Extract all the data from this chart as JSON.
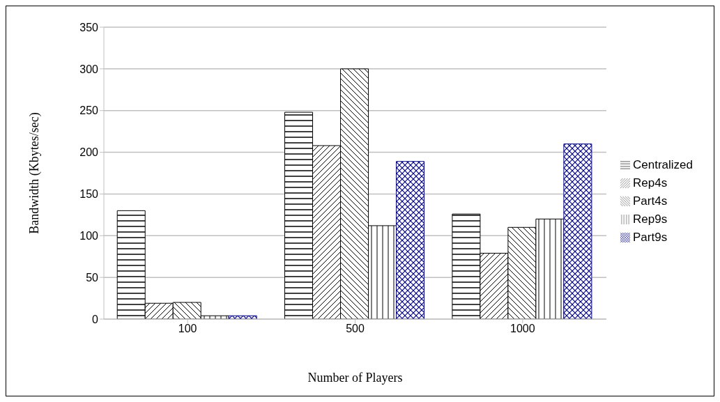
{
  "chart_data": {
    "type": "bar",
    "xlabel": "Number of Players",
    "ylabel": "Bandwidth (Kbytes/sec)",
    "categories": [
      "100",
      "500",
      "1000"
    ],
    "series": [
      {
        "name": "Centralized",
        "color": "#000000",
        "values": [
          130,
          248,
          126
        ]
      },
      {
        "name": "Rep4s",
        "color": "#000000",
        "values": [
          19,
          208,
          79
        ]
      },
      {
        "name": "Part4s",
        "color": "#000000",
        "values": [
          20,
          300,
          110
        ]
      },
      {
        "name": "Rep9s",
        "color": "#000000",
        "values": [
          4,
          112,
          120
        ]
      },
      {
        "name": "Part9s",
        "color": "#000080",
        "values": [
          4,
          189,
          210
        ]
      }
    ],
    "ylim": [
      0,
      350
    ],
    "yticks": [
      0,
      50,
      100,
      150,
      200,
      250,
      300,
      350
    ],
    "grid": "y",
    "legend": "right"
  }
}
